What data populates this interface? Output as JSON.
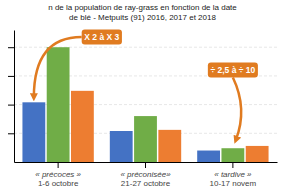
{
  "chart_data": {
    "type": "bar",
    "title": "n de la population de ray-grass en fonction de la date",
    "subtitle": "de blé - Metpuits (91) 2016, 2017 et 2018",
    "categories": [
      "« précoces »\n1-6 octobre",
      "« préconisée»\n21-27 octobre",
      "« tardive »\n10-17 novem"
    ],
    "series": [
      {
        "color": "#4472c4",
        "values": [
          52,
          27,
          10
        ]
      },
      {
        "color": "#70ad47",
        "values": [
          100,
          40,
          12
        ]
      },
      {
        "color": "#ed7d31",
        "values": [
          62,
          28,
          14
        ]
      }
    ],
    "ylim": [
      0,
      115
    ],
    "yticks": [
      25,
      50,
      75,
      100
    ],
    "grid": true,
    "tick_labels": "x",
    "annotations": [
      {
        "text": "X 2 à X 3",
        "color": "#e07b20"
      },
      {
        "text": "÷ 2,5 à ÷ 10",
        "color": "#e07b20"
      }
    ]
  }
}
